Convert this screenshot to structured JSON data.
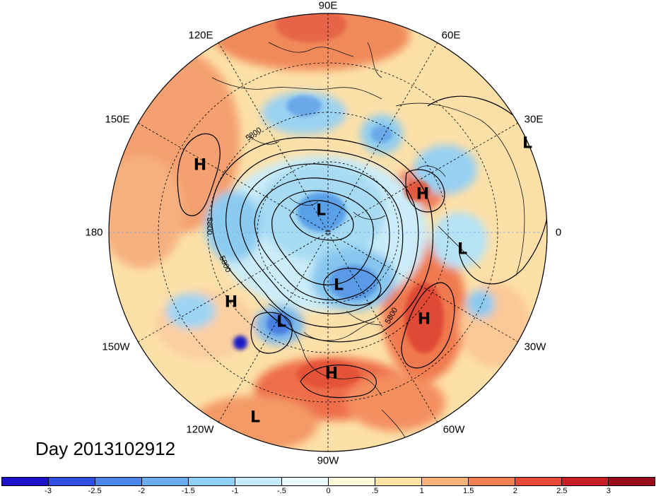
{
  "title": "Day 2013102912",
  "longitude_labels": {
    "lon_90e": "90E",
    "lon_60e": "60E",
    "lon_30e": "30E",
    "lon_0": "0",
    "lon_30w": "30W",
    "lon_60w": "60W",
    "lon_90w": "90W",
    "lon_120w": "120W",
    "lon_150w": "150W",
    "lon_180": "180",
    "lon_150e": "150E",
    "lon_120e": "120E"
  },
  "contour_label": "5800",
  "pressure_centers": [
    {
      "type": "H",
      "label": "H"
    },
    {
      "type": "L",
      "label": "L"
    },
    {
      "type": "L",
      "label": "L"
    },
    {
      "type": "L",
      "label": "L"
    },
    {
      "type": "H",
      "label": "H"
    },
    {
      "type": "L",
      "label": "L"
    },
    {
      "type": "H",
      "label": "H"
    },
    {
      "type": "L",
      "label": "L"
    },
    {
      "type": "H",
      "label": "H"
    },
    {
      "type": "H",
      "label": "H"
    },
    {
      "type": "L",
      "label": "L"
    }
  ],
  "colorbar": {
    "ticks": [
      "-3",
      "-2.5",
      "-2",
      "-1.5",
      "-1",
      "-.5",
      "0",
      ".5",
      "1",
      "1.5",
      "2",
      "2.5",
      "3"
    ],
    "colors": [
      "#1e12c8",
      "#2f4fe0",
      "#4a86ea",
      "#6aaef0",
      "#8fd0f5",
      "#c4ecfa",
      "#eafaff",
      "#fff8d8",
      "#fde3a3",
      "#f9b27a",
      "#f28050",
      "#e84a3a",
      "#c81e28",
      "#9a0c1a"
    ]
  },
  "colors": {
    "ocean_warm": "#fcd9a0",
    "warm": "#f7b07a",
    "hot": "#e8563a",
    "cool": "#a8dcf5",
    "cold": "#5a9ce8",
    "coldest": "#2a3ed0"
  }
}
